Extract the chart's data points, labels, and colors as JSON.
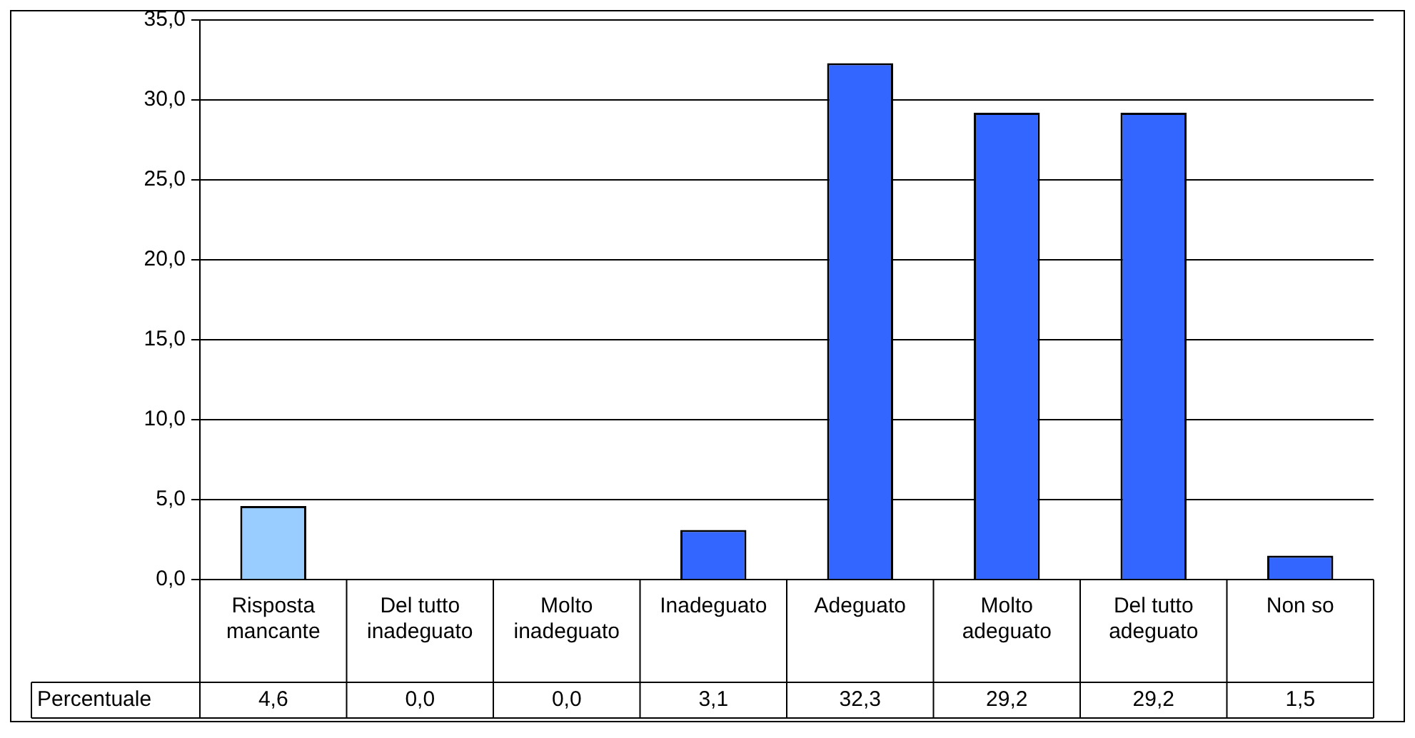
{
  "chart_data": {
    "type": "bar",
    "categories": [
      "Risposta mancante",
      "Del tutto inadeguato",
      "Molto inadeguato",
      "Inadeguato",
      "Adeguato",
      "Molto adeguato",
      "Del tutto adeguato",
      "Non so"
    ],
    "series": [
      {
        "name": "Percentuale",
        "colors": [
          "#99ccff",
          "#3366ff",
          "#3366ff",
          "#3366ff",
          "#3366ff",
          "#3366ff",
          "#3366ff",
          "#3366ff"
        ],
        "values": [
          4.6,
          0.0,
          0.0,
          3.1,
          32.3,
          29.2,
          29.2,
          1.5
        ],
        "value_labels": [
          "4,6",
          "0,0",
          "0,0",
          "3,1",
          "32,3",
          "29,2",
          "29,2",
          "1,5"
        ]
      }
    ],
    "ylim": [
      0,
      35
    ],
    "yticks": [
      {
        "value": 0,
        "label": "0,0"
      },
      {
        "value": 5,
        "label": "5,0"
      },
      {
        "value": 10,
        "label": "10,0"
      },
      {
        "value": 15,
        "label": "15,0"
      },
      {
        "value": 20,
        "label": "20,0"
      },
      {
        "value": 25,
        "label": "25,0"
      },
      {
        "value": 30,
        "label": "30,0"
      },
      {
        "value": 35,
        "label": "35,0"
      }
    ],
    "grid": "y",
    "legend": false
  }
}
